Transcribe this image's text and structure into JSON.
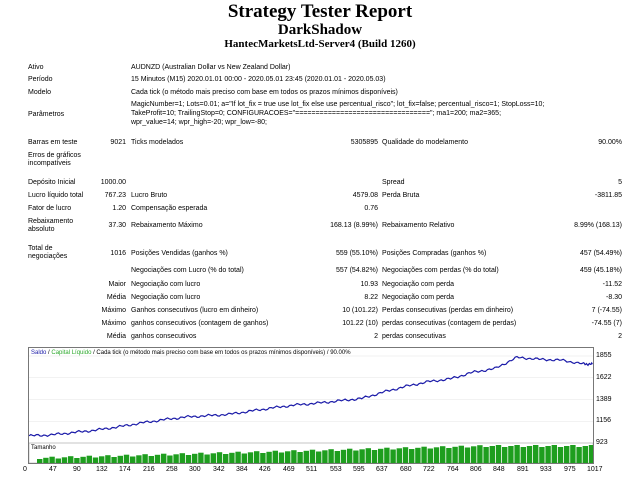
{
  "header": {
    "title": "Strategy Tester Report",
    "expert": "DarkShadow",
    "server": "HantecMarketsLtd-Server4 (Build 1260)"
  },
  "info": {
    "ativo_label": "Ativo",
    "ativo_value": "AUDNZD (Australian Dollar vs New Zealand Dollar)",
    "periodo_label": "Período",
    "periodo_value": "15 Minutos (M15) 2020.01.01 00:00 - 2020.05.01 23:45 (2020.01.01 - 2020.05.03)",
    "modelo_label": "Modelo",
    "modelo_value": "Cada tick (o método mais preciso com base em todos os prazos mínimos disponíveis)",
    "parametros_label": "Parâmetros",
    "parametros_line1": "MagicNumber=1; Lots=0.01; a=\"If lot_fix = true use lot_fix else use percentual_risco\"; lot_fix=false; percentual_risco=1; StopLoss=10;",
    "parametros_line2": "TakeProfit=10; TrailingStop=0; CONFIGURACOES=\"=================================\"; ma1=200; ma2=365;",
    "parametros_line3": "wpr_value=14; wpr_high=-20; wpr_low=-80;"
  },
  "stats": {
    "barras_label": "Barras em teste",
    "barras_value": "9021",
    "ticks_label": "Ticks modelados",
    "ticks_value": "5305895",
    "qualidade_label": "Qualidade do modelamento",
    "qualidade_value": "90.00%",
    "erros_label_1": "Erros de gráficos",
    "erros_label_2": "incompatíveis",
    "deposito_label": "Depósito Inicial",
    "deposito_value": "1000.00",
    "spread_label": "Spread",
    "spread_value": "5",
    "lucro_liquido_label": "Lucro líquido total",
    "lucro_liquido_value": "767.23",
    "lucro_bruto_label": "Lucro Bruto",
    "lucro_bruto_value": "4579.08",
    "perda_bruta_label": "Perda Bruta",
    "perda_bruta_value": "-3811.85",
    "fator_label": "Fator de lucro",
    "fator_value": "1.20",
    "compensacao_label": "Compensação esperada",
    "compensacao_value": "0.76",
    "reb_abs_label_1": "Rebaixamento",
    "reb_abs_label_2": "absoluto",
    "reb_abs_value": "37.30",
    "reb_max_label": "Rebaixamento Máximo",
    "reb_max_value": "168.13 (8.99%)",
    "reb_rel_label": "Rebaixamento Relativo",
    "reb_rel_value": "8.99% (168.13)",
    "total_neg_label_1": "Total de",
    "total_neg_label_2": "negociações",
    "total_neg_value": "1016",
    "pos_vend_label": "Posições Vendidas (ganhos %)",
    "pos_vend_value": "559 (55.10%)",
    "pos_comp_label": "Posições Compradas (ganhos %)",
    "pos_comp_value": "457 (54.49%)",
    "neg_lucro_label": "Negociações com Lucro (% do total)",
    "neg_lucro_value": "557 (54.82%)",
    "neg_perdas_label": "Negociações com perdas (% do total)",
    "neg_perdas_value": "459 (45.18%)",
    "maior_label": "Maior",
    "maior_lucro_label": "Negociação com lucro",
    "maior_lucro_value": "10.93",
    "maior_perda_label": "Negociação com perda",
    "maior_perda_value": "-11.52",
    "media_label": "Média",
    "media_lucro_label": "Negociação com lucro",
    "media_lucro_value": "8.22",
    "media_perda_label": "Negociação com perda",
    "media_perda_value": "-8.30",
    "maximo_label": "Máximo",
    "ganhos_cons_label": "Ganhos consecutivos (lucro em dinheiro)",
    "ganhos_cons_value": "10 (101.22)",
    "perdas_cons_label": "Perdas consecutivas (perdas em dinheiro)",
    "perdas_cons_value": "7 (-74.55)",
    "maximo2_label": "Máximo",
    "ganhos_cont_label": "ganhos consecutivos (contagem de ganhos)",
    "ganhos_cont_value": "101.22 (10)",
    "perdas_cont_label": "perdas consecutivas (contagem de perdas)",
    "perdas_cont_value": "-74.55 (7)",
    "media2_label": "Média",
    "media_ganhos_label": "ganhos consecutivos",
    "media_ganhos_value": "2",
    "media_perdas_label": "perdas consecutivas",
    "media_perdas_value": "2"
  },
  "chart_legend": {
    "saldo": "Saldo",
    "sep1": " / ",
    "capital": "Capital Líquido",
    "sep2": " / ",
    "desc": "Cada tick (o método mais preciso com base em todos os prazos mínimos disponíveis)",
    "sep3": " / ",
    "quality": "90.00%",
    "tamanho": "Tamanho"
  },
  "colors": {
    "balance_line": "#1a1aa8",
    "size_bars": "#1e9e1e",
    "legend_capital": "#2eaa2e"
  },
  "chart_data": {
    "type": "line",
    "series": [
      {
        "name": "Saldo",
        "x": [
          0,
          40,
          80,
          120,
          160,
          200,
          240,
          280,
          320,
          360,
          400,
          440,
          480,
          520,
          560,
          600,
          640,
          680,
          720,
          760,
          800,
          840,
          880,
          920,
          960,
          1000,
          1016
        ],
        "values": [
          1000,
          1010,
          1035,
          1060,
          1095,
          1135,
          1170,
          1200,
          1215,
          1230,
          1265,
          1300,
          1330,
          1350,
          1375,
          1400,
          1470,
          1530,
          1580,
          1610,
          1680,
          1720,
          1840,
          1820,
          1810,
          1770,
          1767
        ]
      }
    ],
    "xticks": [
      "0",
      "47",
      "90",
      "132",
      "174",
      "216",
      "258",
      "300",
      "342",
      "384",
      "426",
      "469",
      "511",
      "553",
      "595",
      "637",
      "680",
      "722",
      "764",
      "806",
      "848",
      "891",
      "933",
      "975",
      "1017"
    ],
    "yticks": [
      "1855",
      "1622",
      "1389",
      "1156",
      "923"
    ],
    "xlim": [
      0,
      1017
    ],
    "ylim": [
      923,
      1855
    ]
  }
}
